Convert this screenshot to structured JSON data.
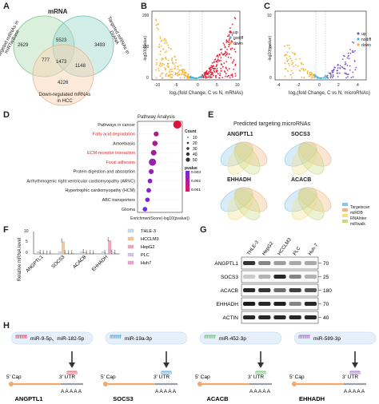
{
  "panels": {
    "A": {
      "label": "A",
      "title": "mRNA",
      "sets": {
        "left": "Targeted mRNAs in miRTarBase",
        "right": "Targeted mRNAs in DIANA",
        "bottom_l1": "Down-regulated mRNAs",
        "bottom_l2": "in HCC"
      },
      "counts": {
        "only_left": "2629",
        "left_right": "5523",
        "only_right": "3493",
        "left_bottom": "777",
        "center": "1473",
        "right_bottom": "1148",
        "only_bottom": "4226"
      }
    },
    "B": {
      "label": "B",
      "xlabel": "log₂(fold Change, C vs N, mRNAs)",
      "ylabel": "-log10(pvalue)",
      "xticks": [
        "-10",
        "-5",
        "0",
        "5",
        "10"
      ],
      "yticks": [
        "0",
        "100",
        "200"
      ],
      "legend": [
        "up",
        "nodiff",
        "down"
      ],
      "legend_colors": [
        "#e8253a",
        "#3bbcd9",
        "#f0b43c"
      ]
    },
    "C": {
      "label": "C",
      "xlabel": "log₂(fold Change, C vs N, microRNAs)",
      "ylabel": "-log10(pvalue)",
      "xticks": [
        "-4",
        "-2",
        "0",
        "2",
        "4"
      ],
      "yticks": [
        "0",
        "5",
        "10"
      ],
      "legend": [
        "up",
        "nodiff",
        "down"
      ]
    },
    "D": {
      "label": "D",
      "title": "Pathway Analysis",
      "xlabel": "EnrichmentScore(-log10(pvalue))",
      "count_title": "Count",
      "count_values": [
        "10",
        "20",
        "30",
        "40",
        "50"
      ],
      "pvalue_title": "pvalue",
      "pvalue_ticks": [
        "0.003",
        "0.002",
        "0.001"
      ]
    },
    "E": {
      "label": "E",
      "title": "Predicted targeting microRNAs",
      "genes": [
        "ANGPTL1",
        "SOCS3",
        "EHHADH",
        "ACACB"
      ],
      "legend": [
        "Targetscan",
        "miRDB",
        "RNAInter",
        "miRwalk"
      ],
      "legend_colors": [
        "#8ec6e8",
        "#f2b880",
        "#f4e08a",
        "#c9d98a"
      ]
    },
    "F": {
      "label": "F",
      "ylabel": "Relative mRNA level",
      "genes": [
        "ANGPTL1",
        "SOCS3",
        "ACACB",
        "EHHADH"
      ],
      "yticks": [
        "0",
        "5",
        "10"
      ],
      "legend": [
        "THLE-3",
        "HCCLM3",
        "HepG2",
        "PLC",
        "Huh7"
      ],
      "legend_colors": [
        "#bfe0f5",
        "#f6c79a",
        "#f3a6b8",
        "#d9c2ea",
        "#f59cd0"
      ],
      "sig": "****"
    },
    "G": {
      "label": "G",
      "lanes": [
        "THLE-3",
        "HepG2",
        "HCCLM3",
        "PLC",
        "Huh-7"
      ],
      "proteins": [
        "ANGPTL1",
        "SOCS3",
        "ACACB",
        "EHHADH",
        "ACTIN"
      ],
      "mw": [
        "70",
        "25",
        "180",
        "70",
        "40"
      ]
    },
    "H": {
      "label": "H",
      "cap": "5' Cap",
      "utr": "3' UTR",
      "polyA": "A A A A A",
      "constructs": [
        {
          "mirna": "miR-9-5p、miR-182-5p",
          "gene": "ANGPTL1",
          "color": "#e8455a"
        },
        {
          "mirna": "miR-19a-3p",
          "gene": "SOCS3",
          "color": "#4a9fd8"
        },
        {
          "mirna": "miR-452-3p",
          "gene": "ACACB",
          "color": "#5fbf5f"
        },
        {
          "mirna": "miR-589-3p",
          "gene": "EHHADH",
          "color": "#9b5fc8"
        }
      ]
    }
  },
  "chart_data": [
    {
      "type": "bar",
      "panel": "D",
      "title": "Pathway Analysis",
      "xlabel": "EnrichmentScore(-log10(pvalue))",
      "categories": [
        "Pathways in cancer",
        "Fatty acid degradation",
        "Amoebiasis",
        "ECM-receptor interaction",
        "Focal adhesion",
        "Protein digestion and absorption",
        "Arrhythmogenic right ventricular cardiomyopathy (ARVC)",
        "Hypertrophic cardiomyopathy (HCM)",
        "ABC transporters",
        "Glioma"
      ],
      "highlighted": [
        false,
        true,
        false,
        true,
        true,
        false,
        false,
        false,
        false,
        false
      ],
      "highlight_color": "#d42a2a",
      "values": [
        3.4,
        2.55,
        2.5,
        2.45,
        2.4,
        2.35,
        2.3,
        2.25,
        2.2,
        2.1
      ],
      "counts": [
        50,
        12,
        15,
        18,
        35,
        12,
        10,
        10,
        8,
        10
      ],
      "pvalues": [
        0.0003,
        0.0028,
        0.003,
        0.0034,
        0.0038,
        0.004,
        0.0045,
        0.0048,
        0.005,
        0.006
      ]
    },
    {
      "type": "bar",
      "panel": "F",
      "ylabel": "Relative mRNA level",
      "ylim": [
        0,
        10
      ],
      "categories": [
        "ANGPTL1",
        "SOCS3",
        "ACACB",
        "EHHADH"
      ],
      "series": [
        {
          "name": "THLE-3",
          "values": [
            1.0,
            1.0,
            1.0,
            1.0
          ]
        },
        {
          "name": "HCCLM3",
          "values": [
            0.3,
            5.5,
            0.8,
            0.2
          ]
        },
        {
          "name": "HepG2",
          "values": [
            0.2,
            0.3,
            0.2,
            6.0
          ]
        },
        {
          "name": "PLC",
          "values": [
            0.1,
            0.2,
            0.3,
            0.5
          ]
        },
        {
          "name": "Huh7",
          "values": [
            0.2,
            0.3,
            0.2,
            0.3
          ]
        }
      ]
    }
  ]
}
